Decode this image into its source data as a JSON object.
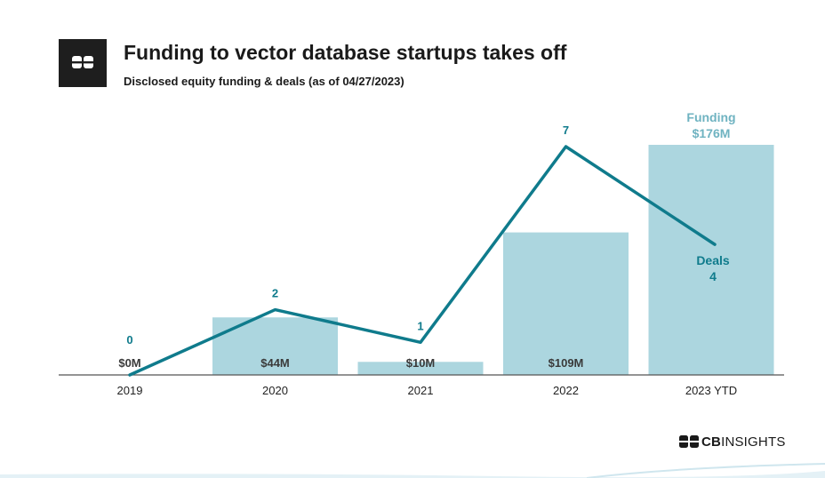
{
  "header": {
    "title": "Funding to vector database startups takes off",
    "subtitle": "Disclosed equity funding & deals (as of 04/27/2023)"
  },
  "brand": {
    "bold": "CB",
    "rest": "INSIGHTS",
    "icon": "cb-insights-logo-icon"
  },
  "colors": {
    "bar": "#acd6df",
    "line": "#0f7b8c",
    "line_label": "#0f7b8c",
    "bar_label": "#3a3a3a",
    "funding_label": "#6fb3c1",
    "axis": "#555555"
  },
  "chart_data": {
    "type": "bar",
    "categories": [
      "2019",
      "2020",
      "2021",
      "2022",
      "2023 YTD"
    ],
    "series": [
      {
        "name": "Funding",
        "kind": "bar",
        "values": [
          0,
          44,
          10,
          109,
          176
        ],
        "value_labels": [
          "$0M",
          "$44M",
          "$10M",
          "$109M",
          "$176M"
        ]
      },
      {
        "name": "Deals",
        "kind": "line",
        "values": [
          0,
          2,
          1,
          7,
          4
        ],
        "value_labels": [
          "0",
          "2",
          "1",
          "7",
          "4"
        ]
      }
    ],
    "annotations": {
      "funding_label": "Funding",
      "deals_label": "Deals"
    },
    "ylim_funding": [
      0,
      176
    ],
    "ylim_deals": [
      0,
      7
    ],
    "grid": false,
    "legend": "none"
  }
}
